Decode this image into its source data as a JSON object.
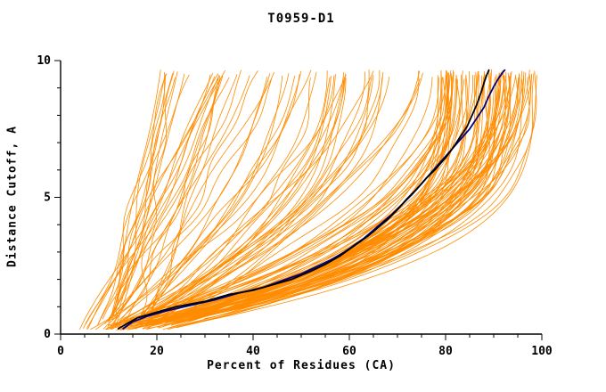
{
  "chart_data": {
    "type": "line",
    "title": "T0959-D1",
    "xlabel": "Percent of Residues (CA)",
    "ylabel": "Distance Cutoff, A",
    "xlim": [
      0,
      100
    ],
    "ylim": [
      0,
      10
    ],
    "x_ticks": [
      0,
      20,
      40,
      60,
      80,
      100
    ],
    "x_minor_step": 5,
    "y_ticks": [
      0,
      5,
      10
    ],
    "y_minor_step": 1,
    "grid": false,
    "legend": "none",
    "background": "#ffffff",
    "axis_color": "#000000",
    "series": [
      {
        "name": "model-ensemble",
        "role": "ensemble",
        "color": "#ff8c00",
        "width": 0.8,
        "count": 150,
        "seed": 11,
        "note": "many orange model curves spanning y 0.2-9.7; dense bundle reaching x 78-99 at top, sparser poor models reaching x 18-78"
      },
      {
        "name": "highlight-black",
        "color": "#000000",
        "width": 1.8,
        "points": [
          [
            12,
            0.2
          ],
          [
            14,
            0.4
          ],
          [
            16,
            0.6
          ],
          [
            20,
            0.8
          ],
          [
            24,
            1.0
          ],
          [
            30,
            1.2
          ],
          [
            35,
            1.45
          ],
          [
            40,
            1.6
          ],
          [
            44,
            1.8
          ],
          [
            48,
            2.0
          ],
          [
            52,
            2.3
          ],
          [
            55,
            2.55
          ],
          [
            58,
            2.85
          ],
          [
            60,
            3.1
          ],
          [
            62,
            3.35
          ],
          [
            64,
            3.6
          ],
          [
            66,
            3.9
          ],
          [
            68,
            4.2
          ],
          [
            70,
            4.55
          ],
          [
            72,
            4.95
          ],
          [
            74,
            5.3
          ],
          [
            76,
            5.7
          ],
          [
            78,
            6.05
          ],
          [
            80,
            6.45
          ],
          [
            81.5,
            6.8
          ],
          [
            83,
            7.2
          ],
          [
            84.5,
            7.6
          ],
          [
            85.5,
            8.0
          ],
          [
            86.5,
            8.4
          ],
          [
            87.5,
            8.9
          ],
          [
            88,
            9.2
          ],
          [
            88.5,
            9.45
          ],
          [
            89,
            9.65
          ]
        ]
      },
      {
        "name": "highlight-navy",
        "color": "#000080",
        "width": 1.8,
        "points": [
          [
            13,
            0.2
          ],
          [
            15,
            0.45
          ],
          [
            18,
            0.65
          ],
          [
            22,
            0.85
          ],
          [
            27,
            1.05
          ],
          [
            32,
            1.25
          ],
          [
            37,
            1.5
          ],
          [
            42,
            1.7
          ],
          [
            46,
            1.95
          ],
          [
            50,
            2.2
          ],
          [
            53,
            2.45
          ],
          [
            56,
            2.7
          ],
          [
            59,
            3.0
          ],
          [
            61,
            3.25
          ],
          [
            63,
            3.5
          ],
          [
            65,
            3.8
          ],
          [
            67,
            4.1
          ],
          [
            69,
            4.4
          ],
          [
            71,
            4.75
          ],
          [
            73,
            5.1
          ],
          [
            75,
            5.5
          ],
          [
            77,
            5.9
          ],
          [
            79,
            6.3
          ],
          [
            81,
            6.7
          ],
          [
            83,
            7.1
          ],
          [
            85,
            7.5
          ],
          [
            86.5,
            7.9
          ],
          [
            88,
            8.3
          ],
          [
            89,
            8.7
          ],
          [
            90,
            9.05
          ],
          [
            91,
            9.35
          ],
          [
            91.8,
            9.55
          ],
          [
            92.3,
            9.65
          ]
        ]
      }
    ]
  }
}
